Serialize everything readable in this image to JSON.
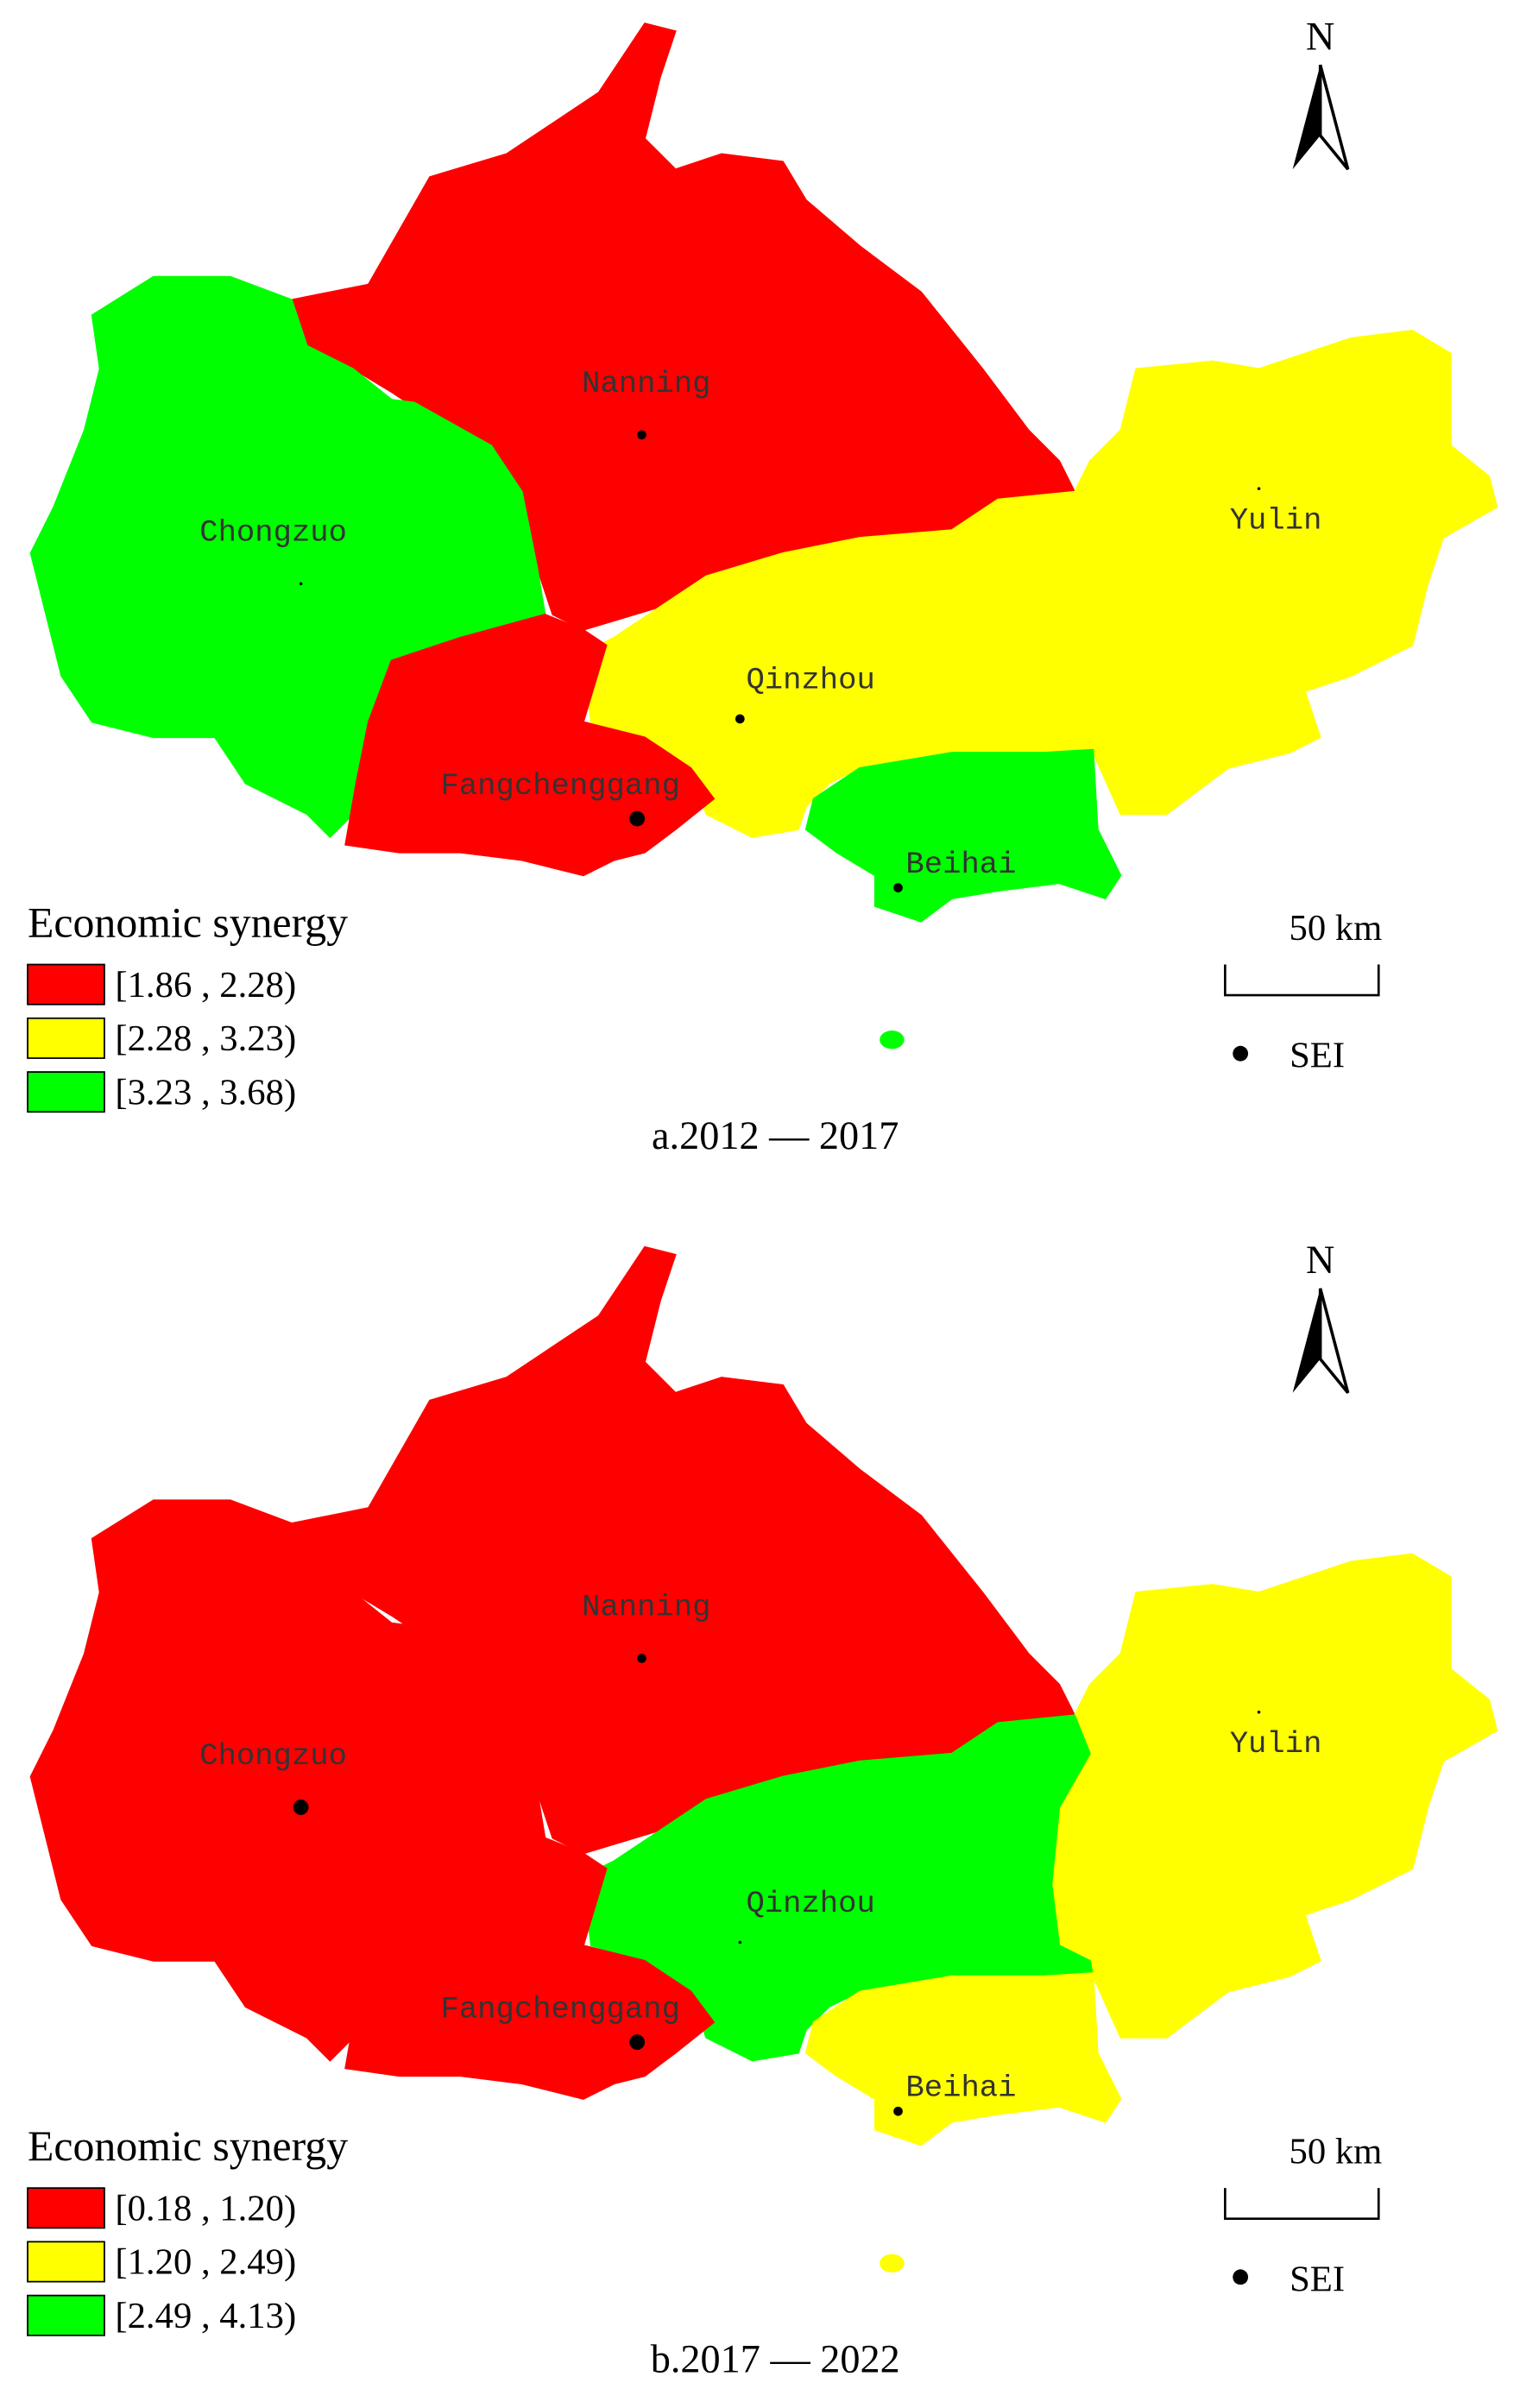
{
  "maps": [
    {
      "caption": "a.2012 — 2017",
      "north": "N",
      "scale": "50 km",
      "point_label": "SEI",
      "legend": {
        "title": "Economic synergy",
        "entries": [
          {
            "label": "[1.86 , 2.28)",
            "color": "#ff0000"
          },
          {
            "label": "[2.28 , 3.23)",
            "color": "#ffff00"
          },
          {
            "label": "[3.23 , 3.68)",
            "color": "#00ff00"
          }
        ]
      },
      "regions": [
        {
          "name": "Nanning",
          "color": "#ff0000"
        },
        {
          "name": "Chongzuo",
          "color": "#00ff00"
        },
        {
          "name": "Yulin",
          "color": "#ffff00"
        },
        {
          "name": "Qinzhou",
          "color": "#ffff00"
        },
        {
          "name": "Fangchenggang",
          "color": "#ff0000"
        },
        {
          "name": "Beihai",
          "color": "#00ff00"
        }
      ]
    },
    {
      "caption": "b.2017 — 2022",
      "north": "N",
      "scale": "50 km",
      "point_label": "SEI",
      "legend": {
        "title": "Economic synergy",
        "entries": [
          {
            "label": "[0.18 , 1.20)",
            "color": "#ff0000"
          },
          {
            "label": "[1.20 , 2.49)",
            "color": "#ffff00"
          },
          {
            "label": "[2.49 , 4.13)",
            "color": "#00ff00"
          }
        ]
      },
      "regions": [
        {
          "name": "Nanning",
          "color": "#ff0000"
        },
        {
          "name": "Chongzuo",
          "color": "#ff0000"
        },
        {
          "name": "Yulin",
          "color": "#ffff00"
        },
        {
          "name": "Qinzhou",
          "color": "#00ff00"
        },
        {
          "name": "Fangchenggang",
          "color": "#ff0000"
        },
        {
          "name": "Beihai",
          "color": "#ffff00"
        }
      ]
    }
  ]
}
